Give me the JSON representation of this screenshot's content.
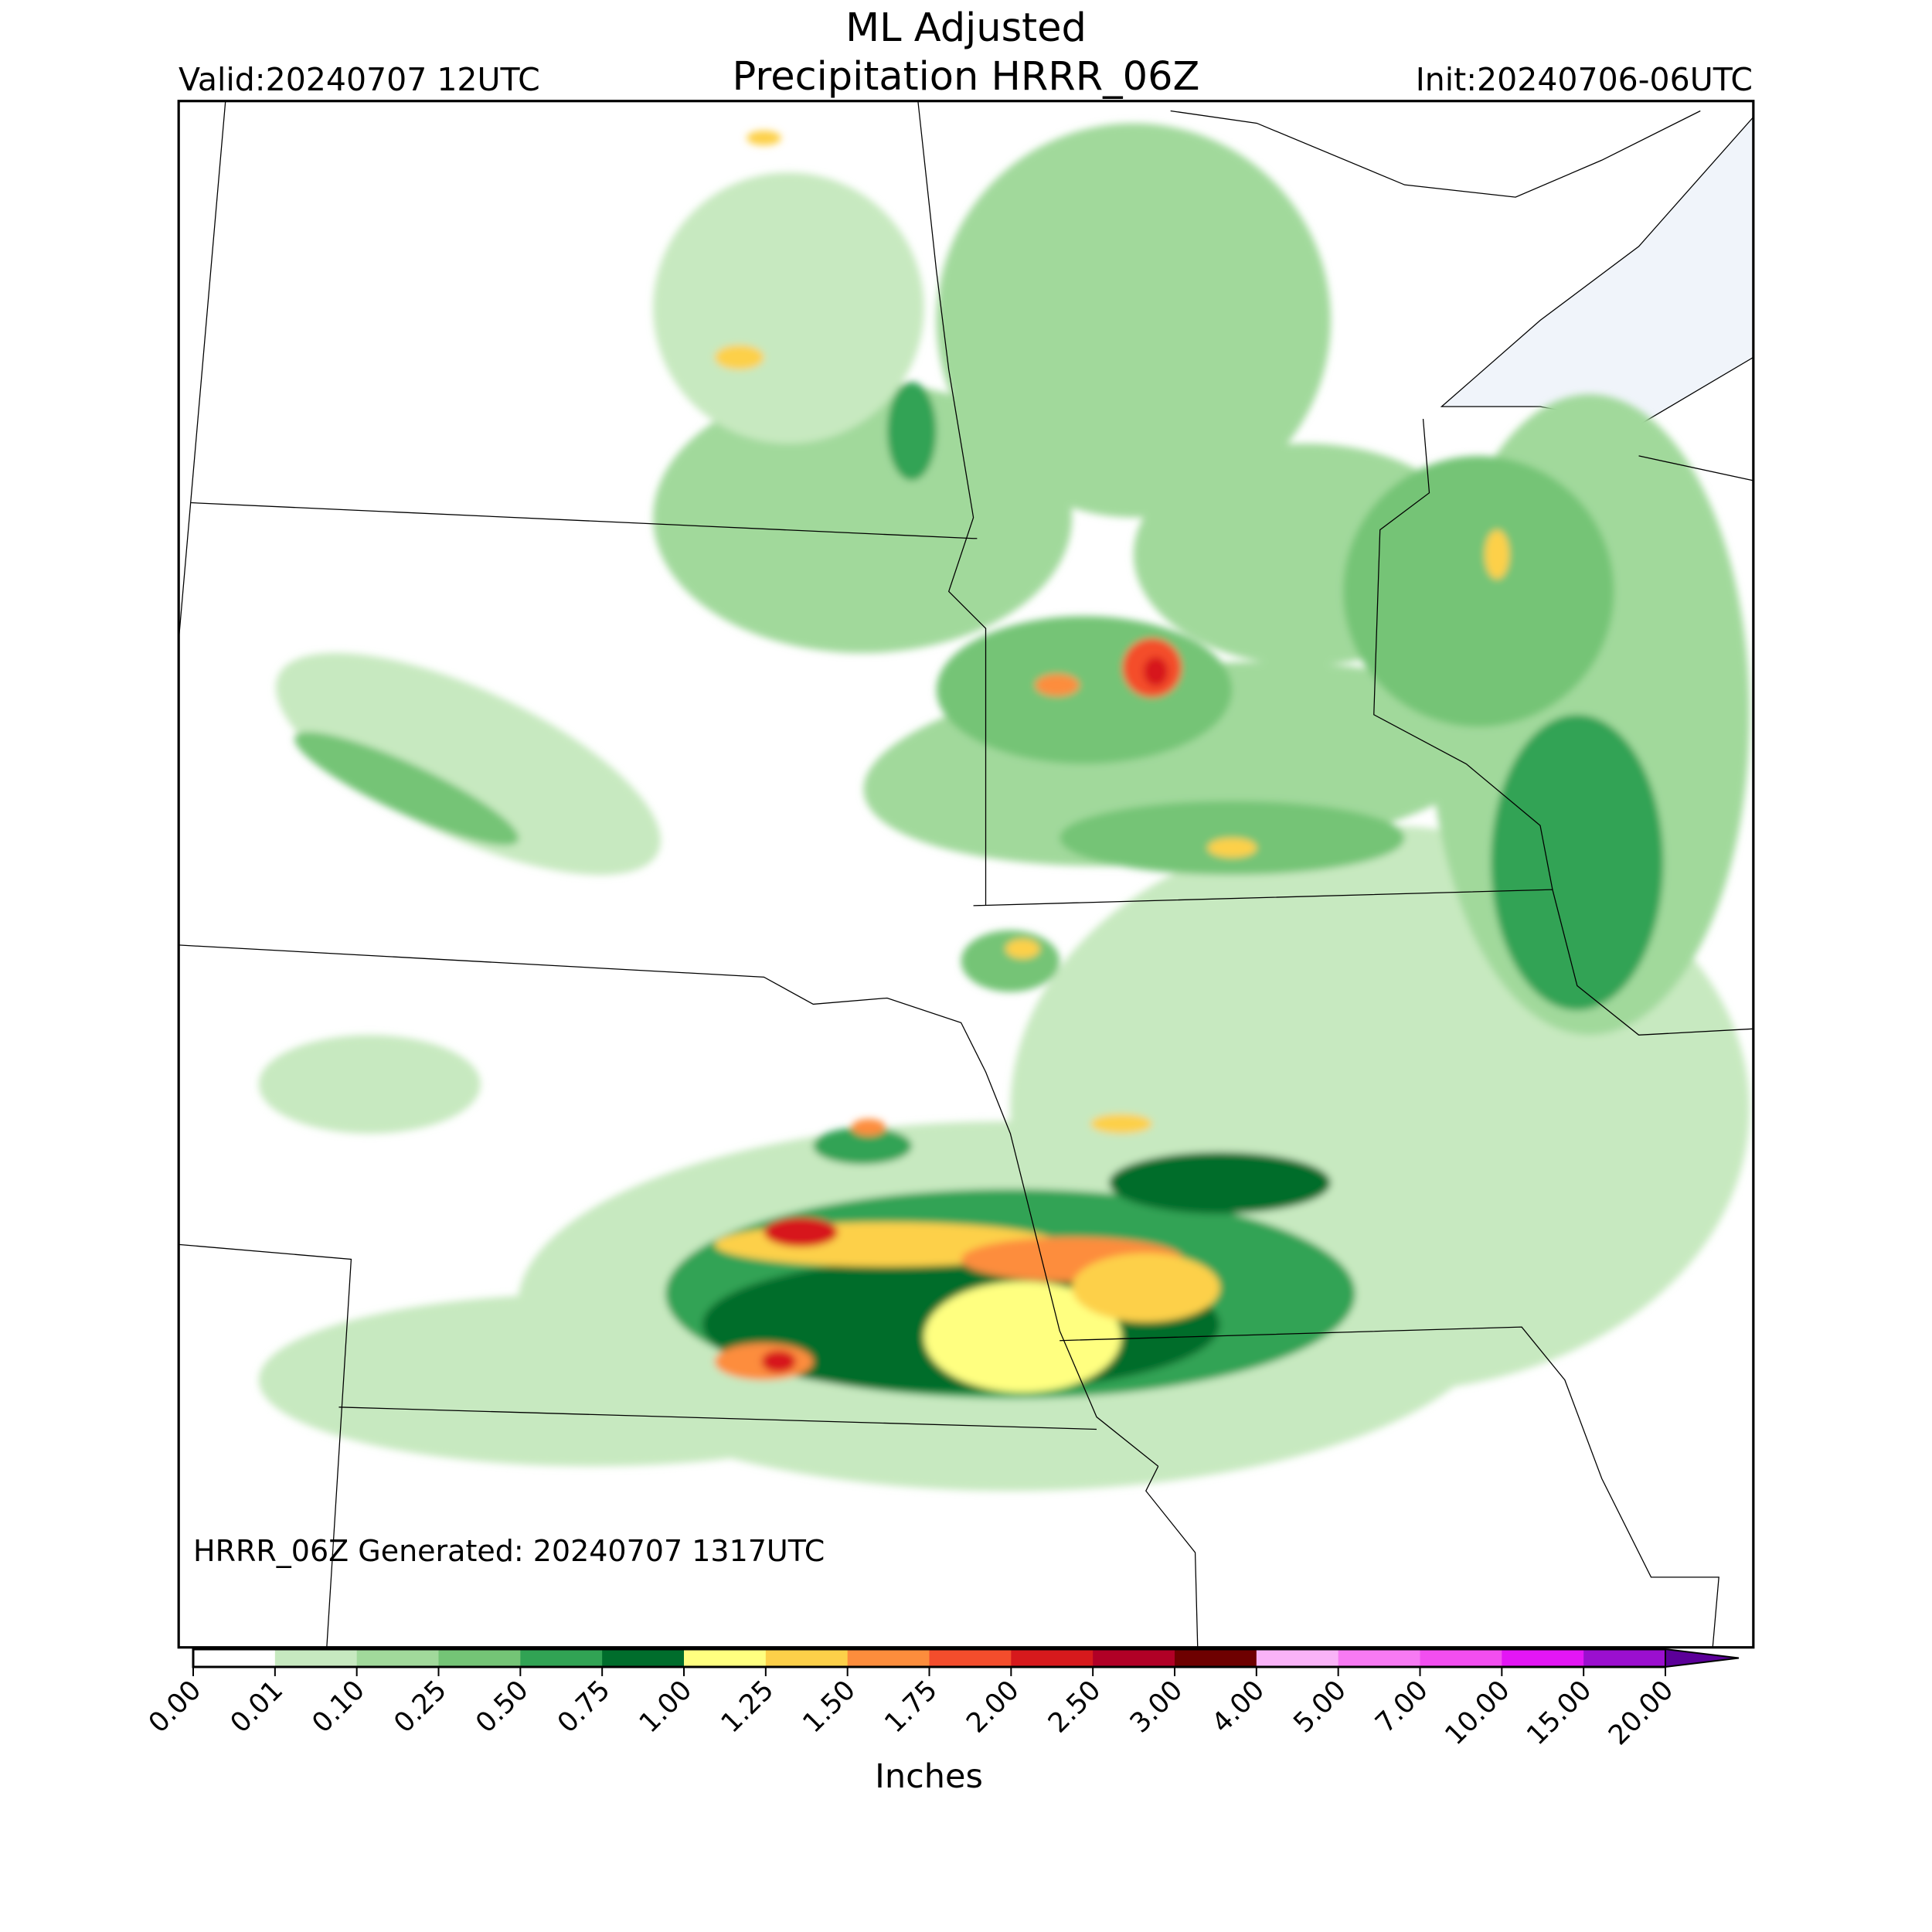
{
  "header": {
    "title_line1": "ML Adjusted",
    "title_line2": "Precipitation HRRR_06Z",
    "valid": "Valid:20240707 12UTC",
    "init": "Init:20240706-06UTC"
  },
  "footnote": "HRRR_06Z Generated: 20240707 1317UTC",
  "colorbar": {
    "label": "Inches",
    "ticks": [
      {
        "value": 0,
        "label": "0.00"
      },
      {
        "value": 0.01,
        "label": "0.01"
      },
      {
        "value": 0.1,
        "label": "0.10"
      },
      {
        "value": 0.25,
        "label": "0.25"
      },
      {
        "value": 0.5,
        "label": "0.50"
      },
      {
        "value": 0.75,
        "label": "0.75"
      },
      {
        "value": 1,
        "label": "1.00"
      },
      {
        "value": 1.25,
        "label": "1.25"
      },
      {
        "value": 1.5,
        "label": "1.50"
      },
      {
        "value": 1.75,
        "label": "1.75"
      },
      {
        "value": 2,
        "label": "2.00"
      },
      {
        "value": 2.5,
        "label": "2.50"
      },
      {
        "value": 3,
        "label": "3.00"
      },
      {
        "value": 4,
        "label": "4.00"
      },
      {
        "value": 5,
        "label": "5.00"
      },
      {
        "value": 7,
        "label": "7.00"
      },
      {
        "value": 10,
        "label": "10.00"
      },
      {
        "value": 15,
        "label": "15.00"
      },
      {
        "value": 20,
        "label": "20.00"
      }
    ],
    "colors": [
      "#ffffff",
      "#c7e9c0",
      "#a1d99b",
      "#74c476",
      "#31a354",
      "#006d2c",
      "#ffff80",
      "#fdd049",
      "#fd8d3c",
      "#f44d2c",
      "#d7191c",
      "#b10026",
      "#6e0000",
      "#f9b3f7",
      "#f77af3",
      "#f24ef0",
      "#e316f5",
      "#9b0fcf",
      "#5c0099"
    ]
  }
}
